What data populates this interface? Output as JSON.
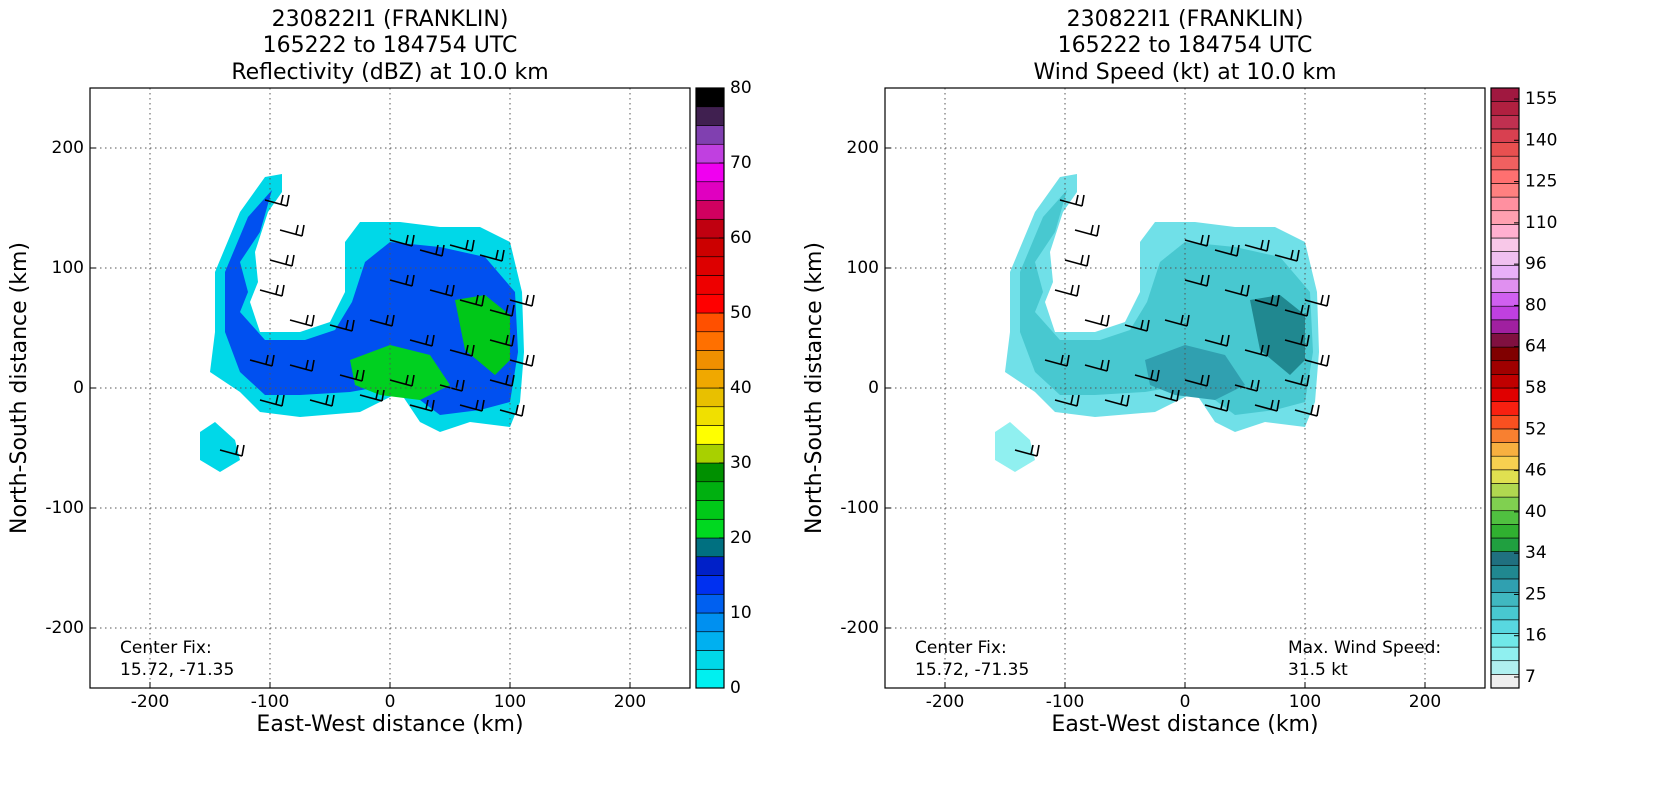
{
  "chart_data": [
    {
      "type": "heatmap",
      "title": "230822I1 (FRANKLIN)",
      "subtitle": "165222 to 184754 UTC",
      "field": "Reflectivity (dBZ) at 10.0 km",
      "xlabel": "East-West distance (km)",
      "ylabel": "North-South distance (km)",
      "xlim": [
        -250,
        250
      ],
      "ylim": [
        -250,
        250
      ],
      "xticks": [
        -200,
        -100,
        0,
        100,
        200
      ],
      "yticks": [
        -200,
        -100,
        0,
        100,
        200
      ],
      "grid": true,
      "annotations": [
        {
          "position": "lower left",
          "lines": [
            "Center Fix:",
            "15.72, -71.35"
          ]
        }
      ],
      "colorbar": {
        "clim": [
          0,
          80
        ],
        "ticks": [
          0,
          10,
          20,
          30,
          40,
          50,
          60,
          70,
          80
        ],
        "colors": [
          "#00f0f0",
          "#00d8e8",
          "#00b0f0",
          "#0090f0",
          "#0060f0",
          "#0030f0",
          "#0020c8",
          "#007080",
          "#00d820",
          "#00c818",
          "#00b010",
          "#009000",
          "#a8d000",
          "#ffff00",
          "#f0e000",
          "#e8c000",
          "#f0a800",
          "#f09000",
          "#ff7000",
          "#ff5000",
          "#ff0000",
          "#ee0000",
          "#dd0000",
          "#cc0000",
          "#c00010",
          "#d00060",
          "#e000c0",
          "#f000f0",
          "#c040e0",
          "#8040b0",
          "#402050",
          "#000000"
        ]
      }
    },
    {
      "type": "heatmap",
      "title": "230822I1 (FRANKLIN)",
      "subtitle": "165222 to 184754 UTC",
      "field": "Wind Speed (kt) at 10.0 km",
      "xlabel": "East-West distance (km)",
      "ylabel": "North-South distance (km)",
      "xlim": [
        -250,
        250
      ],
      "ylim": [
        -250,
        250
      ],
      "xticks": [
        -200,
        -100,
        0,
        100,
        200
      ],
      "yticks": [
        -200,
        -100,
        0,
        100,
        200
      ],
      "grid": true,
      "annotations": [
        {
          "position": "lower left",
          "lines": [
            "Center Fix:",
            "15.72, -71.35"
          ]
        },
        {
          "position": "lower right",
          "lines": [
            "Max. Wind Speed:",
            "31.5 kt"
          ]
        }
      ],
      "colorbar": {
        "ticks": [
          7,
          16,
          25,
          34,
          40,
          46,
          52,
          58,
          64,
          80,
          96,
          110,
          125,
          140,
          155
        ],
        "colors": [
          "#eeeeee",
          "#b0f0f0",
          "#90f0f0",
          "#70e8e8",
          "#58d8e0",
          "#48c8d0",
          "#40b8c0",
          "#30a0b0",
          "#208890",
          "#207080",
          "#20a040",
          "#30b030",
          "#50c040",
          "#80d050",
          "#b0d850",
          "#e0e050",
          "#f8d050",
          "#f8b040",
          "#f88030",
          "#f85020",
          "#f82010",
          "#e00000",
          "#c00000",
          "#a00000",
          "#800000",
          "#801040",
          "#a020a0",
          "#c040e0",
          "#d060f0",
          "#e090f0",
          "#e8b0f8",
          "#f0c0f0",
          "#f8c8e8",
          "#ffb0d0",
          "#ffa0b0",
          "#ff90a0",
          "#ff8080",
          "#ff7070",
          "#f06060",
          "#e85050",
          "#d84050",
          "#c03050",
          "#b02040",
          "#a01840"
        ]
      }
    }
  ]
}
